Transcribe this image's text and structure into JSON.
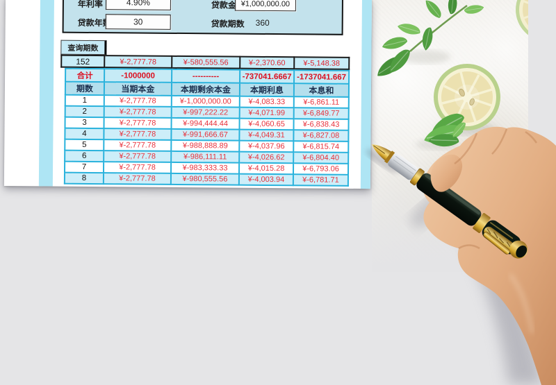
{
  "params": {
    "rate_label": "年利率",
    "rate_value": "4.90%",
    "amount_label": "贷款金额",
    "amount_value": "¥1,000,000.00",
    "years_label": "贷款年数",
    "years_value": "30",
    "periods_label": "贷款期数",
    "periods_value": "360"
  },
  "query": {
    "tab_label": "查询期数",
    "period": "152",
    "values": [
      "¥-2,777.78",
      "¥-580,555.56",
      "¥-2,370.60",
      "¥-5,148.38"
    ]
  },
  "table": {
    "total_label": "合计",
    "total_values": [
      "-1000000",
      "----------",
      "-737041.6667",
      "-1737041.667"
    ],
    "headers": [
      "期数",
      "当期本金",
      "本期剩余本金",
      "本期利息",
      "本息和"
    ],
    "rows": [
      [
        "1",
        "¥-2,777.78",
        "¥-1,000,000.00",
        "¥-4,083.33",
        "¥-6,861.11"
      ],
      [
        "2",
        "¥-2,777.78",
        "¥-997,222.22",
        "¥-4,071.99",
        "¥-6,849.77"
      ],
      [
        "3",
        "¥-2,777.78",
        "¥-994,444.44",
        "¥-4,060.65",
        "¥-6,838.43"
      ],
      [
        "4",
        "¥-2,777.78",
        "¥-991,666.67",
        "¥-4,049.31",
        "¥-6,827.08"
      ],
      [
        "5",
        "¥-2,777.78",
        "¥-988,888.89",
        "¥-4,037.96",
        "¥-6,815.74"
      ],
      [
        "6",
        "¥-2,777.78",
        "¥-986,111.11",
        "¥-4,026.62",
        "¥-6,804.40"
      ],
      [
        "7",
        "¥-2,777.78",
        "¥-983,333.33",
        "¥-4,015.28",
        "¥-6,793.06"
      ],
      [
        "8",
        "¥-2,777.78",
        "¥-980,555.56",
        "¥-4,003.94",
        "¥-6,781.71"
      ]
    ]
  },
  "colors": {
    "grid_blue": "#29b2dc",
    "cell_blue": "#cdeef9",
    "header_blue": "#b4dfed",
    "panel_blue": "#c3e2ec",
    "value_red": "#e02531",
    "query_border": "#1b1b1b"
  },
  "photo": {
    "items": [
      "mint-sprig",
      "lime-slice",
      "hand-holding-fountain-pen"
    ]
  }
}
